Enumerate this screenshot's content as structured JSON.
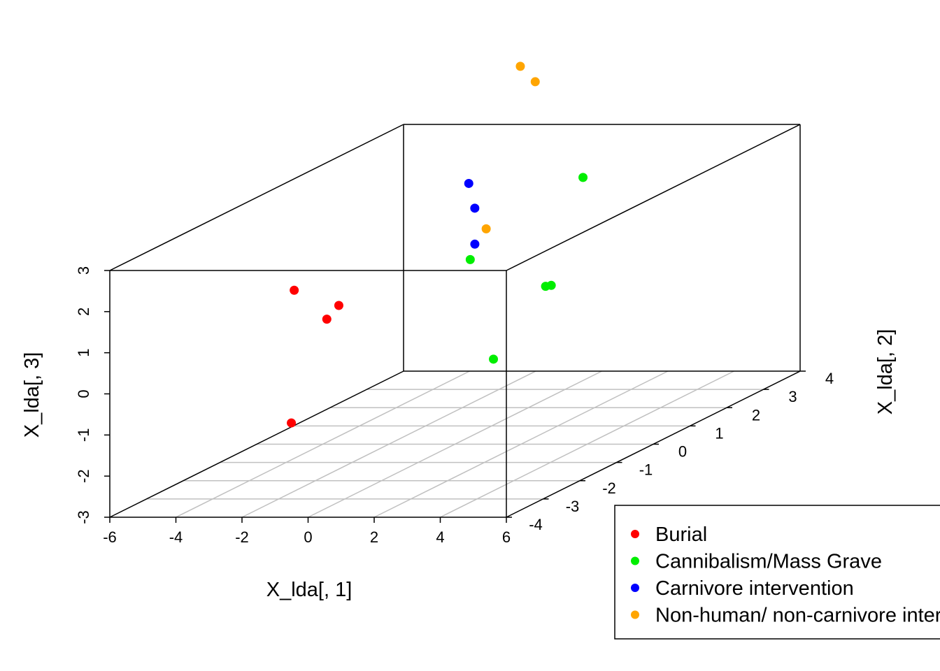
{
  "chart_data": {
    "type": "scatter",
    "xlabel": "X_lda[, 1]",
    "ylabel": "X_lda[, 2]",
    "zlabel": "X_lda[, 3]",
    "xlim": [
      -6,
      6
    ],
    "ylim": [
      -4,
      4
    ],
    "zlim": [
      -3,
      3
    ],
    "x_ticks": [
      "-6",
      "-4",
      "-2",
      "0",
      "2",
      "4",
      "6"
    ],
    "y_ticks": [
      "-4",
      "-3",
      "-2",
      "-1",
      "0",
      "1",
      "2",
      "3",
      "4"
    ],
    "z_ticks": [
      "-3",
      "-2",
      "-1",
      "0",
      "1",
      "2",
      "3"
    ],
    "grid": true,
    "legend_position": "bottom-right",
    "series": [
      {
        "name": "Burial",
        "color": "#ff0000",
        "points": [
          {
            "x": -2.32,
            "y": -2.29,
            "z": 1.76
          },
          {
            "x": -1.1,
            "y": -2.5,
            "z": 1.15
          },
          {
            "x": -0.17,
            "y": -3.01,
            "z": 1.71
          },
          {
            "x": -1.14,
            "y": -3.43,
            "z": -0.96
          }
        ]
      },
      {
        "name": "Cannibalism/Mass Grave",
        "color": "#00ee00",
        "points": [
          {
            "x": 0.33,
            "y": 3.19,
            "z": 2.07
          },
          {
            "x": 0.24,
            "y": 0.2,
            "z": 1.4
          },
          {
            "x": 1.98,
            "y": 0.84,
            "z": 0.49
          },
          {
            "x": 2.32,
            "y": 0.38,
            "z": 0.67
          },
          {
            "x": 2.72,
            "y": -1.4,
            "z": -0.31
          }
        ]
      },
      {
        "name": "Carnivore intervention",
        "color": "#0000ff",
        "points": [
          {
            "x": -1.26,
            "y": 1.51,
            "z": 2.67
          },
          {
            "x": -0.3,
            "y": 0.81,
            "z": 2.38
          },
          {
            "x": 0.49,
            "y": 0.1,
            "z": 1.82
          }
        ]
      },
      {
        "name": "Non-human/ non-carnivore intervention",
        "color": "#ffa500",
        "points": [
          {
            "x": -2.3,
            "y": 3.85,
            "z": 4.48
          },
          {
            "x": -1.16,
            "y": 3.23,
            "z": 4.38
          },
          {
            "x": 1.0,
            "y": -0.05,
            "z": 2.26
          }
        ]
      }
    ]
  }
}
